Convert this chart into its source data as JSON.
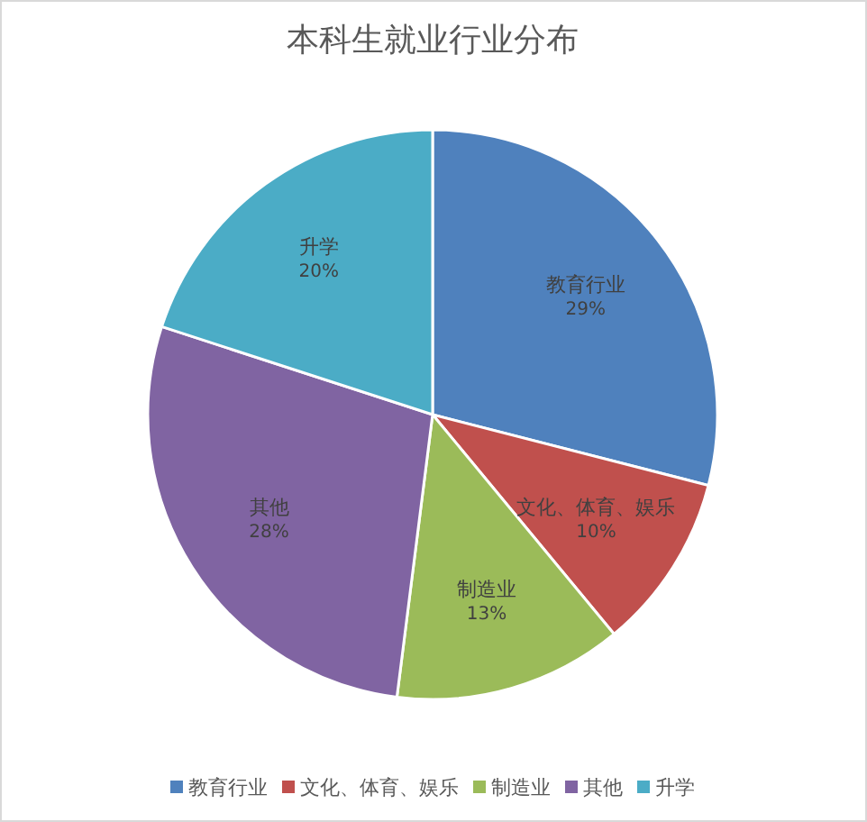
{
  "chart_data": {
    "type": "pie",
    "title": "本科生就业行业分布",
    "categories": [
      "教育行业",
      "文化、体育、娱乐",
      "制造业",
      "其他",
      "升学"
    ],
    "values": [
      29,
      10,
      13,
      28,
      20
    ],
    "value_labels": [
      "29%",
      "10%",
      "13%",
      "28%",
      "20%"
    ],
    "colors": [
      "#4f81bd",
      "#c0504d",
      "#9bbb59",
      "#8064a2",
      "#4bacc6"
    ],
    "legend": "bottom"
  }
}
